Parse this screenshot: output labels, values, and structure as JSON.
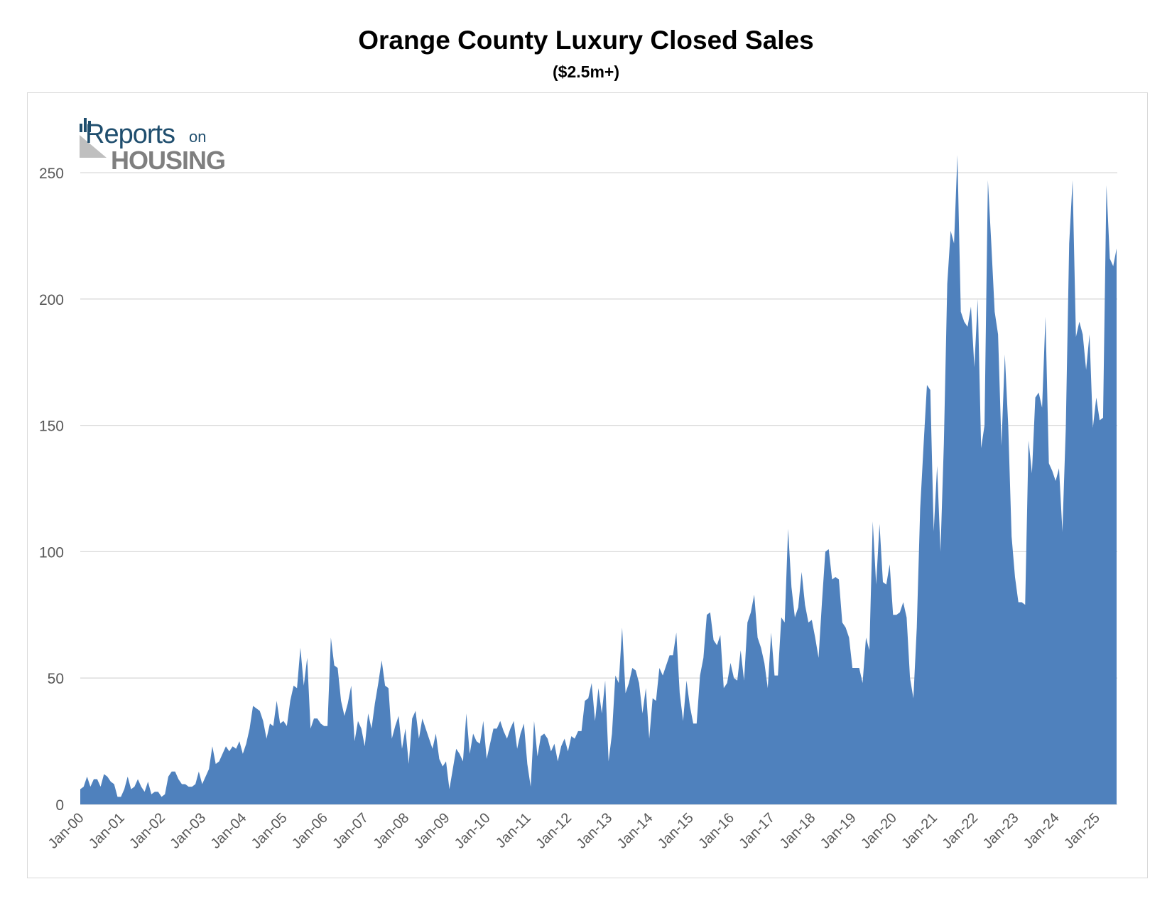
{
  "chart_data": {
    "type": "area",
    "title": "Orange County Luxury Closed Sales",
    "subtitle": "($2.5m+)",
    "xlabel": "",
    "ylabel": "",
    "ylim": [
      0,
      250
    ],
    "y_ticks": [
      0,
      50,
      100,
      150,
      200,
      250
    ],
    "y_tick_labels": [
      "0",
      "50",
      "100",
      "150",
      "200",
      "250"
    ],
    "x_tick_labels": [
      "Jan-00",
      "Jan-01",
      "Jan-02",
      "Jan-03",
      "Jan-04",
      "Jan-05",
      "Jan-06",
      "Jan-07",
      "Jan-08",
      "Jan-09",
      "Jan-10",
      "Jan-11",
      "Jan-12",
      "Jan-13",
      "Jan-14",
      "Jan-15",
      "Jan-16",
      "Jan-17",
      "Jan-18",
      "Jan-19",
      "Jan-20",
      "Jan-21",
      "Jan-22",
      "Jan-23",
      "Jan-24",
      "Jan-25"
    ],
    "grid": "horizontal",
    "legend": "none",
    "fill_color": "#4f81bd",
    "series": [
      {
        "start": "Jan-00",
        "frequency": "monthly",
        "values": [
          6,
          7,
          11,
          7,
          10,
          10,
          7,
          12,
          11,
          9,
          8,
          3,
          3,
          6,
          11,
          6,
          7,
          10,
          7,
          5,
          9,
          4,
          5,
          5,
          3,
          4,
          11,
          13,
          13,
          10,
          8,
          8,
          7,
          7,
          8,
          13,
          8,
          11,
          14,
          23,
          16,
          17,
          20,
          23,
          21,
          23,
          22,
          25,
          20,
          24,
          30,
          39,
          38,
          37,
          33,
          26,
          32,
          31,
          41,
          32,
          33,
          31,
          41,
          47,
          46,
          62,
          47,
          58,
          30,
          34,
          34,
          32,
          31,
          31,
          66,
          55,
          54,
          41,
          35,
          40,
          47,
          25,
          33,
          30,
          23,
          36,
          30,
          40,
          48,
          57,
          47,
          46,
          26,
          31,
          35,
          22,
          30,
          16,
          34,
          37,
          26,
          34,
          30,
          26,
          22,
          28,
          18,
          15,
          17,
          6,
          14,
          22,
          20,
          17,
          36,
          20,
          28,
          25,
          24,
          33,
          18,
          24,
          30,
          30,
          33,
          29,
          26,
          30,
          33,
          22,
          28,
          32,
          16,
          7,
          33,
          19,
          27,
          28,
          26,
          21,
          24,
          17,
          23,
          26,
          21,
          27,
          26,
          29,
          29,
          41,
          42,
          48,
          33,
          46,
          36,
          49,
          17,
          28,
          51,
          48,
          70,
          44,
          48,
          54,
          53,
          48,
          36,
          46,
          26,
          42,
          41,
          54,
          51,
          55,
          59,
          59,
          68,
          44,
          33,
          49,
          39,
          32,
          32,
          51,
          58,
          75,
          76,
          65,
          63,
          67,
          46,
          48,
          56,
          50,
          49,
          61,
          49,
          72,
          76,
          83,
          66,
          62,
          56,
          46,
          68,
          51,
          51,
          74,
          72,
          109,
          86,
          74,
          78,
          92,
          79,
          72,
          73,
          66,
          58,
          80,
          100,
          101,
          89,
          90,
          89,
          72,
          70,
          66,
          54,
          54,
          54,
          48,
          66,
          61,
          112,
          87,
          111,
          88,
          87,
          95,
          75,
          75,
          76,
          80,
          74,
          50,
          42,
          70,
          117,
          142,
          166,
          164,
          108,
          134,
          100,
          143,
          206,
          227,
          222,
          257,
          195,
          191,
          189,
          197,
          173,
          200,
          141,
          150,
          247,
          222,
          195,
          186,
          142,
          178,
          150,
          106,
          90,
          80,
          80,
          79,
          144,
          131,
          161,
          163,
          157,
          193,
          135,
          132,
          128,
          133,
          108,
          149,
          222,
          247,
          185,
          191,
          186,
          172,
          186,
          149,
          161,
          152,
          153,
          245,
          216,
          213,
          220
        ]
      }
    ]
  },
  "logo": {
    "line1_big": "Reports",
    "line1_small": "on",
    "line2": "HOUSING",
    "color_dark": "#1f4e6e",
    "color_gray": "#7f7f7f"
  }
}
